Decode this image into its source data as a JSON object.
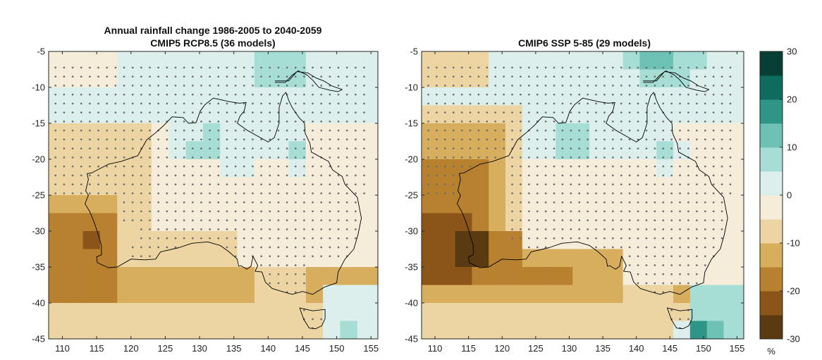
{
  "figure": {
    "left_title_line1": "Annual rainfall change 1986-2005 to 2040-2059",
    "left_title_line2": "CMIP5 RCP8.5 (36 models)",
    "right_title": "CMIP6 SSP 5-85 (29 models)"
  },
  "map_axes": {
    "lon_ticks": [
      "110",
      "115",
      "120",
      "125",
      "130",
      "135",
      "140",
      "145",
      "150",
      "155"
    ],
    "lat_ticks": [
      "-5",
      "-10",
      "-15",
      "-20",
      "-25",
      "-30",
      "-35",
      "-40",
      "-45"
    ],
    "lon_range": [
      108,
      156
    ],
    "lat_range": [
      -45,
      -5
    ],
    "grid_step_deg": 2.5,
    "stipple_meaning_hidden": true
  },
  "colorbar": {
    "unit_label": "%",
    "tick_labels": [
      "30",
      "20",
      "10",
      "0",
      "-10",
      "-20",
      "-30"
    ],
    "range": [
      -30,
      30
    ],
    "colors_low_to_high": [
      "#5a3a10",
      "#8b5418",
      "#b7812f",
      "#d7ad5e",
      "#ecd5a3",
      "#f5ecda",
      "#dcefec",
      "#a6ddd5",
      "#6dc1b5",
      "#2f9587",
      "#0e6c5f",
      "#073f34"
    ]
  },
  "chart_data": [
    {
      "type": "heatmap",
      "title": "CMIP5 RCP8.5 (36 models)",
      "xlabel": "",
      "ylabel": "",
      "xlim": [
        108,
        156
      ],
      "ylim": [
        -45,
        -5
      ],
      "xticks": [
        110,
        115,
        120,
        125,
        130,
        135,
        140,
        145,
        150,
        155
      ],
      "yticks": [
        -5,
        -10,
        -15,
        -20,
        -25,
        -30,
        -35,
        -40,
        -45
      ],
      "value_unit": "%",
      "value_range": [
        -30,
        30
      ],
      "features": {
        "west_coast_drying_percent": -20,
        "southwest_wa_min_percent": -22,
        "southern_ocean_band_percent": -12,
        "interior_percent": -3,
        "north_australia_percent": 3,
        "nt_qld_wet_patches_percent": 7,
        "southeast_tasman_percent": 12
      }
    },
    {
      "type": "heatmap",
      "title": "CMIP6 SSP 5-85 (29 models)",
      "xlabel": "",
      "ylabel": "",
      "xlim": [
        108,
        156
      ],
      "ylim": [
        -45,
        -5
      ],
      "xticks": [
        110,
        115,
        120,
        125,
        130,
        135,
        140,
        145,
        150,
        155
      ],
      "yticks": [
        -5,
        -10,
        -15,
        -20,
        -25,
        -30,
        -35,
        -40,
        -45
      ],
      "value_unit": "%",
      "value_range": [
        -30,
        30
      ],
      "features": {
        "west_coast_drying_percent": -22,
        "southwest_wa_min_percent": -28,
        "southern_ocean_band_percent": -16,
        "interior_percent": -2,
        "north_australia_percent": 4,
        "nt_qld_wet_patches_percent": 7,
        "gulf_northeast_percent": 12,
        "southeast_tasman_max_percent": 25
      }
    }
  ]
}
